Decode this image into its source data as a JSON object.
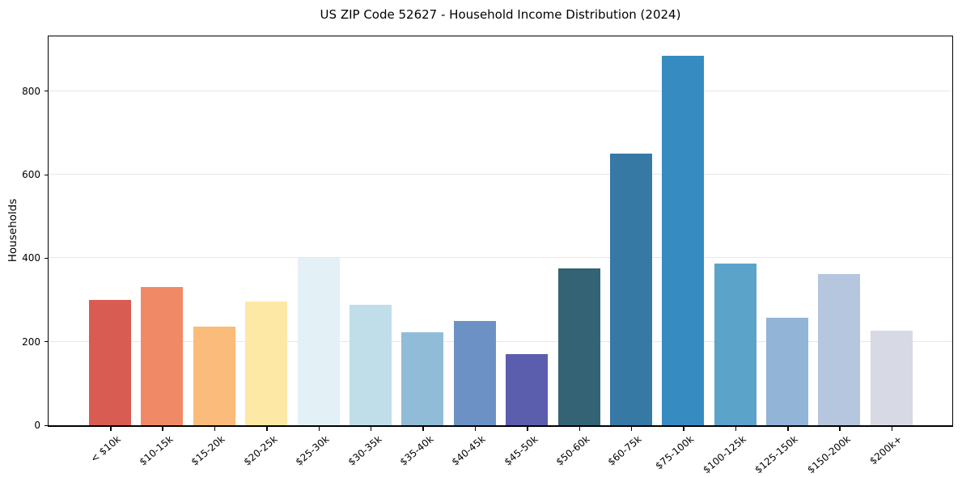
{
  "chart_data": {
    "type": "bar",
    "title": "US ZIP Code 52627 - Household Income Distribution (2024)",
    "xlabel": "",
    "ylabel": "Households",
    "categories": [
      "< $10k",
      "$10-15k",
      "$15-20k",
      "$20-25k",
      "$25-30k",
      "$30-35k",
      "$35-40k",
      "$40-45k",
      "$45-50k",
      "$50-60k",
      "$60-75k",
      "$75-100k",
      "$100-125k",
      "$125-150k",
      "$150-200k",
      "$200k+"
    ],
    "values": [
      300,
      331,
      236,
      296,
      401,
      288,
      222,
      249,
      170,
      376,
      651,
      885,
      387,
      257,
      363,
      226
    ],
    "bar_colors": [
      "#d85c52",
      "#f08a66",
      "#fbbb7a",
      "#fde8a6",
      "#e3f1f6",
      "#bfdee9",
      "#90bcd8",
      "#6c92c5",
      "#5b5ead",
      "#346376",
      "#3579a4",
      "#368bc1",
      "#5ba3c9",
      "#92b4d6",
      "#b6c6de",
      "#d7d9e4"
    ],
    "yticks": [
      0,
      200,
      400,
      600,
      800
    ],
    "ylim": [
      0,
      931
    ],
    "grid": "horizontal",
    "grid_color": "#e7e7e7",
    "axis_color": "#000000",
    "background": "#ffffff",
    "legend": "none"
  }
}
